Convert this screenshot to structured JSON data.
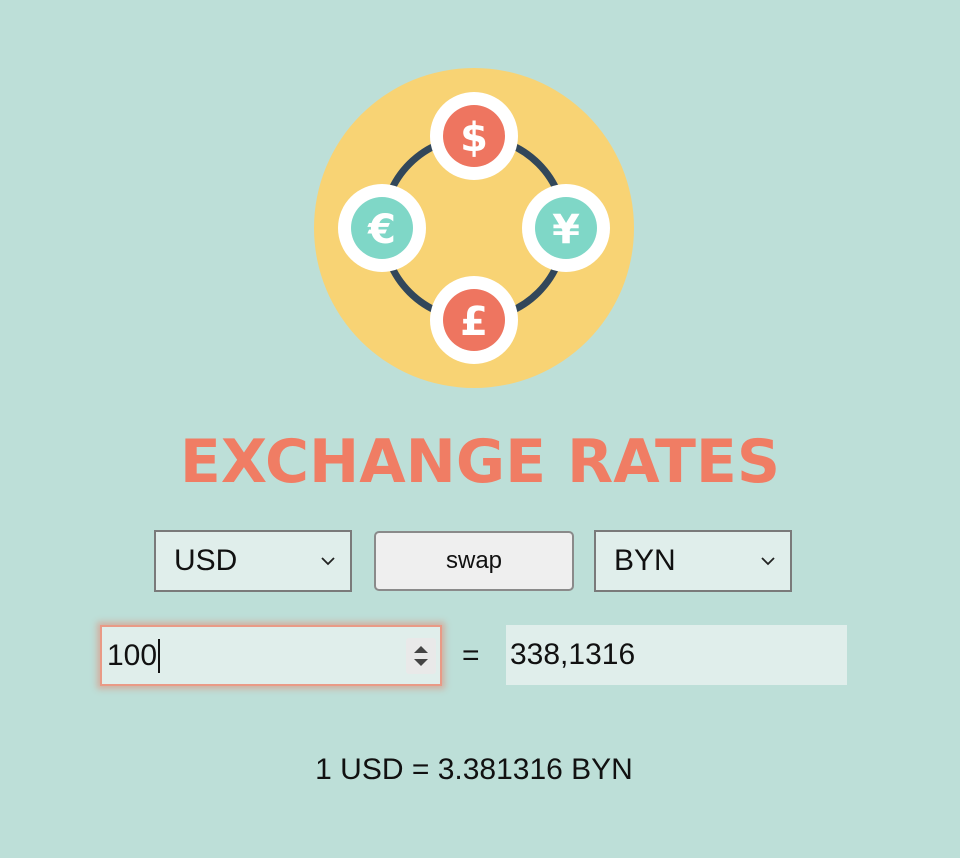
{
  "title": "EXCHANGE RATES",
  "logo": {
    "icon": "currency-exchange-logo",
    "symbols": [
      "$",
      "€",
      "¥",
      "£"
    ],
    "colors": {
      "background": "#f8d374",
      "ring": "#32475a",
      "coin_red": "#ee7560",
      "coin_teal": "#7fd7c7"
    }
  },
  "converter": {
    "from_currency": "USD",
    "to_currency": "BYN",
    "swap_label": "swap",
    "amount": "100",
    "equals": "=",
    "result": "338,1316"
  },
  "rate_text": "1 USD = 3.381316 BYN",
  "colors": {
    "background": "#bddfd8",
    "title": "#f07d64",
    "field": "#e0eeeb"
  }
}
